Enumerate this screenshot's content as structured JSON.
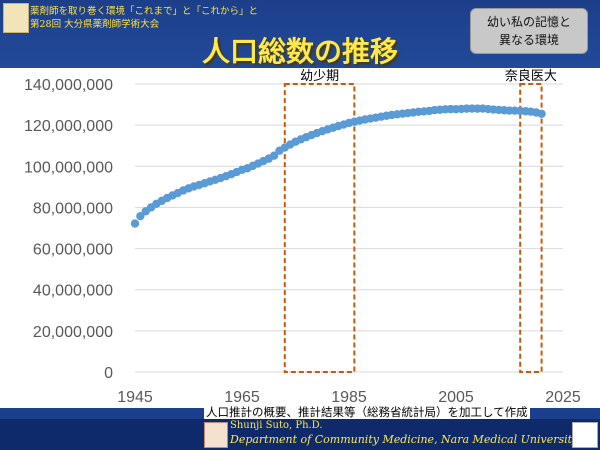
{
  "header": {
    "line1": "薬剤師を取り巻く環境「これまで」と「これから」と",
    "line2": "第28回 大分県薬剤師学術大会"
  },
  "note": {
    "line1": "幼い私の記憶と",
    "line2": "異なる環境"
  },
  "footer": {
    "source": "人口推計の概要、推計結果等（総務省統計局）を加工して作成",
    "author": "Shunji Suto, Ph.D.",
    "affiliation": "Department of Community Medicine, Nara Medical University"
  },
  "colors": {
    "marker": "#5b9bd5",
    "highlight": "#c55a11",
    "title": "#ffe84a"
  },
  "chart_data": {
    "type": "scatter",
    "title": "人口総数の推移",
    "xlabel": "",
    "ylabel": "",
    "xlim": [
      1945,
      2025
    ],
    "ylim": [
      0,
      140000000
    ],
    "x_ticks": [
      "1945",
      "1965",
      "1985",
      "2005",
      "2025"
    ],
    "y_ticks": [
      "0",
      "20,000,000",
      "40,000,000",
      "60,000,000",
      "80,000,000",
      "100,000,000",
      "120,000,000",
      "140,000,000"
    ],
    "grid": "horizontal",
    "series": [
      {
        "x": [
          1945,
          1946,
          1947,
          1948,
          1949,
          1950,
          1951,
          1952,
          1953,
          1954,
          1955,
          1956,
          1957,
          1958,
          1959,
          1960,
          1961,
          1962,
          1963,
          1964,
          1965,
          1966,
          1967,
          1968,
          1969,
          1970,
          1971,
          1972,
          1973,
          1974,
          1975,
          1976,
          1977,
          1978,
          1979,
          1980,
          1981,
          1982,
          1983,
          1984,
          1985,
          1986,
          1987,
          1988,
          1989,
          1990,
          1991,
          1992,
          1993,
          1994,
          1995,
          1996,
          1997,
          1998,
          1999,
          2000,
          2001,
          2002,
          2003,
          2004,
          2005,
          2006,
          2007,
          2008,
          2009,
          2010,
          2011,
          2012,
          2013,
          2014,
          2015,
          2016,
          2017,
          2018,
          2019,
          2020,
          2021
        ],
        "values": [
          72147000,
          75750000,
          78101000,
          80002000,
          81773000,
          83200000,
          84541000,
          85808000,
          86981000,
          88239000,
          89276000,
          90172000,
          90928000,
          91767000,
          92641000,
          93419000,
          94287000,
          95181000,
          96156000,
          97182000,
          98275000,
          99036000,
          100196000,
          101331000,
          102536000,
          103720000,
          105145000,
          107595000,
          109104000,
          110573000,
          111940000,
          113094000,
          114165000,
          115190000,
          116155000,
          117060000,
          117902000,
          118728000,
          119536000,
          120305000,
          121049000,
          121660000,
          122239000,
          122745000,
          123205000,
          123611000,
          124101000,
          124567000,
          124938000,
          125265000,
          125570000,
          125859000,
          126157000,
          126472000,
          126667000,
          126926000,
          127316000,
          127486000,
          127694000,
          127787000,
          127768000,
          127901000,
          128033000,
          128084000,
          128032000,
          128057000,
          127834000,
          127593000,
          127414000,
          127237000,
          127095000,
          127042000,
          126919000,
          126749000,
          126555000,
          126146000,
          125502000
        ]
      }
    ],
    "highlights": [
      {
        "label": "幼少期",
        "x_start": 1973,
        "x_end": 1986,
        "y_start": 0,
        "y_end": 140000000
      },
      {
        "label": "奈良医大",
        "x_start": 2017,
        "x_end": 2021,
        "y_start": 0,
        "y_end": 140000000
      }
    ]
  }
}
